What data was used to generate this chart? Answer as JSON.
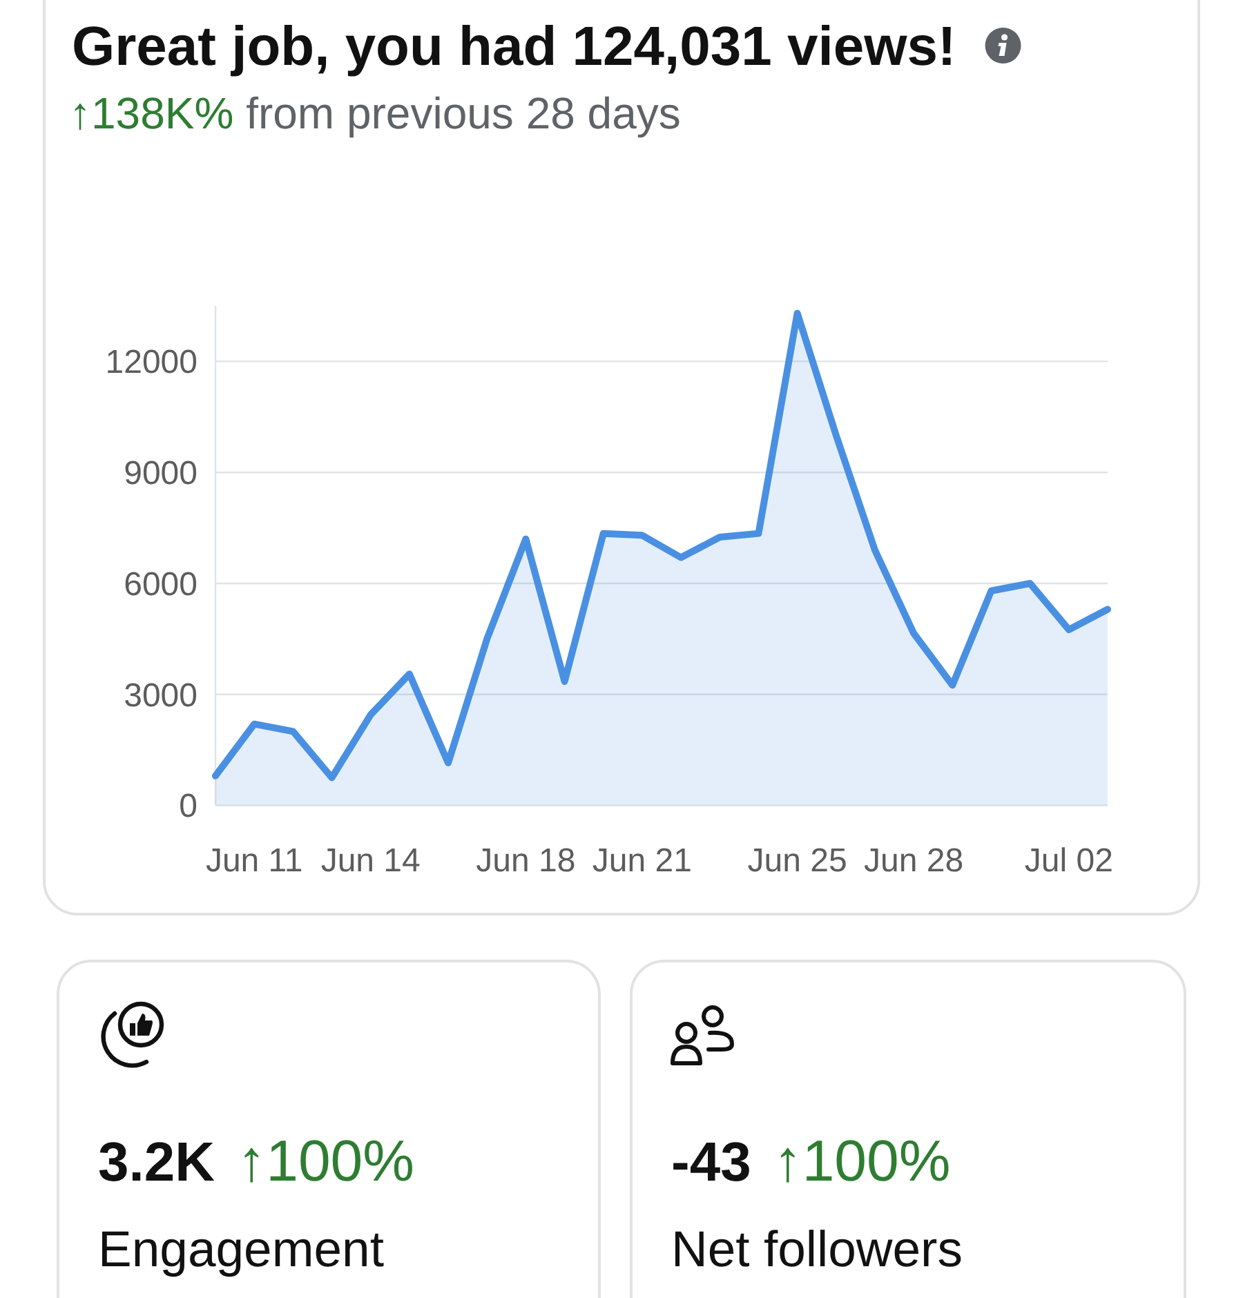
{
  "chart_data": [
    {
      "type": "area",
      "title": "Great job, you had 124,031 views!",
      "subtitle": "↑138K% from previous 28 days",
      "categories": [
        null,
        "Jun 11",
        null,
        null,
        "Jun 14",
        null,
        null,
        null,
        "Jun 18",
        null,
        null,
        "Jun 21",
        null,
        null,
        null,
        "Jun 25",
        null,
        null,
        "Jun 28",
        null,
        null,
        null,
        "Jul 02",
        null
      ],
      "values": [
        800,
        2200,
        2000,
        750,
        2450,
        3550,
        1150,
        4500,
        7200,
        3350,
        7350,
        7300,
        6700,
        7250,
        7350,
        13300,
        10000,
        6900,
        4650,
        3250,
        5800,
        6000,
        4750,
        5300
      ],
      "color": "#4a90e2",
      "ylim": [
        0,
        13500
      ],
      "yticks": [
        0,
        3000,
        6000,
        9000,
        12000
      ],
      "grid": "y"
    },
    {
      "type": "other",
      "title": "Engagement",
      "annotations": [
        "3.2K",
        "↑100%"
      ]
    },
    {
      "type": "other",
      "title": "Net followers",
      "annotations": [
        "-43",
        "↑100%"
      ]
    }
  ]
}
